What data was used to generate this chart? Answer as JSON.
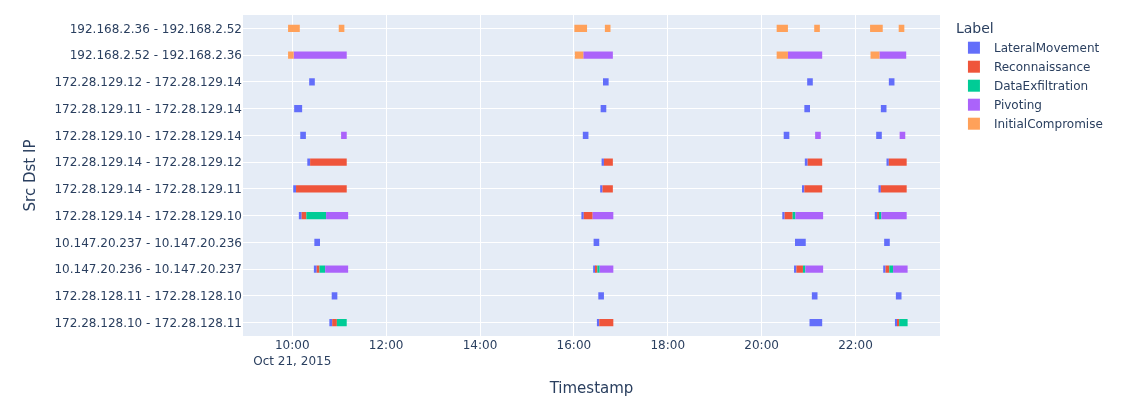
{
  "chart_data": {
    "type": "bar",
    "orientation": "horizontal",
    "xlabel": "Timestamp",
    "ylabel": "Src Dst IP",
    "legend_title": "Label",
    "legend": "top right",
    "grid": true,
    "categories": [
      "192.168.2.36 - 192.168.2.52",
      "192.168.2.52 - 192.168.2.36",
      "172.28.129.12 - 172.28.129.14",
      "172.28.129.11 - 172.28.129.14",
      "172.28.129.10 - 172.28.129.14",
      "172.28.129.14 - 172.28.129.12",
      "172.28.129.14 - 172.28.129.11",
      "172.28.129.14 - 172.28.129.10",
      "10.147.20.237 - 10.147.20.236",
      "10.147.20.236 - 10.147.20.237",
      "172.28.128.11 - 172.28.128.10",
      "172.28.128.10 - 172.28.128.11"
    ],
    "xlim": [
      8.95,
      23.8
    ],
    "xticks": [
      {
        "value": 10,
        "label": "10:00\nOct 21, 2015"
      },
      {
        "value": 12,
        "label": "12:00"
      },
      {
        "value": 14,
        "label": "14:00"
      },
      {
        "value": 16,
        "label": "16:00"
      },
      {
        "value": 18,
        "label": "18:00"
      },
      {
        "value": 20,
        "label": "20:00"
      },
      {
        "value": 22,
        "label": "22:00"
      }
    ],
    "series": [
      {
        "name": "LateralMovement",
        "color": "#636efa",
        "base": [
          null,
          null,
          10.36,
          10.04,
          10.17,
          10.32,
          10.02,
          10.14,
          10.47,
          10.46,
          10.84,
          10.79
        ],
        "values": [
          null,
          null,
          0.12,
          0.17,
          0.12,
          0.06,
          0.06,
          0.06,
          0.12,
          0.06,
          0.12,
          0.06
        ]
      },
      {
        "color": "#636efa",
        "base": [
          null,
          null,
          16.62,
          16.57,
          16.19,
          16.59,
          16.56,
          16.16,
          16.42,
          16.41,
          16.52,
          16.49
        ],
        "values": [
          null,
          null,
          0.12,
          0.12,
          0.12,
          0.05,
          0.05,
          0.05,
          0.12,
          0.05,
          0.12,
          0.05
        ]
      },
      {
        "color": "#636efa",
        "base": [
          null,
          null,
          20.97,
          20.91,
          20.47,
          20.92,
          20.86,
          20.44,
          20.71,
          20.69,
          21.07,
          21.02
        ],
        "values": [
          null,
          null,
          0.12,
          0.12,
          0.12,
          0.06,
          0.05,
          0.05,
          0.23,
          0.05,
          0.12,
          0.27
        ]
      },
      {
        "color": "#636efa",
        "base": [
          null,
          null,
          22.71,
          22.54,
          22.44,
          22.66,
          22.49,
          22.41,
          22.61,
          22.59,
          22.86,
          22.84
        ],
        "values": [
          null,
          null,
          0.12,
          0.12,
          0.12,
          0.05,
          0.05,
          0.05,
          0.12,
          0.05,
          0.12,
          0.05
        ]
      },
      {
        "name": "Reconnaissance",
        "color": "#ef553b",
        "base": [
          null,
          null,
          null,
          null,
          null,
          10.38,
          10.08,
          10.2,
          null,
          10.52,
          null,
          10.85
        ],
        "values": [
          null,
          null,
          null,
          null,
          null,
          0.78,
          1.08,
          0.1,
          null,
          0.06,
          null,
          0.1
        ]
      },
      {
        "color": "#ef553b",
        "base": [
          null,
          null,
          null,
          null,
          null,
          16.64,
          16.61,
          16.21,
          null,
          16.46,
          null,
          16.54
        ],
        "values": [
          null,
          null,
          null,
          null,
          null,
          0.19,
          0.22,
          0.19,
          null,
          0.04,
          null,
          0.3
        ]
      },
      {
        "color": "#ef553b",
        "base": [
          null,
          null,
          null,
          null,
          null,
          20.98,
          20.91,
          20.49,
          null,
          20.74,
          null,
          null
        ],
        "values": [
          null,
          null,
          null,
          null,
          null,
          0.31,
          0.38,
          0.17,
          null,
          0.14,
          null,
          null
        ]
      },
      {
        "color": "#ef553b",
        "base": [
          null,
          null,
          null,
          null,
          null,
          22.71,
          22.54,
          22.46,
          null,
          22.64,
          null,
          22.89
        ],
        "values": [
          null,
          null,
          null,
          null,
          null,
          0.38,
          0.55,
          0.05,
          null,
          0.08,
          null,
          0.04
        ]
      },
      {
        "name": "DataExfiltration",
        "color": "#00cc96",
        "base": [
          null,
          null,
          null,
          null,
          null,
          null,
          null,
          10.3,
          null,
          10.58,
          null,
          10.95
        ],
        "values": [
          null,
          null,
          null,
          null,
          null,
          null,
          null,
          0.42,
          null,
          0.12,
          null,
          0.21
        ]
      },
      {
        "color": "#00cc96",
        "base": [
          null,
          null,
          null,
          null,
          null,
          null,
          null,
          null,
          null,
          16.5,
          null,
          null
        ],
        "values": [
          null,
          null,
          null,
          null,
          null,
          null,
          null,
          null,
          null,
          0.05,
          null,
          null
        ]
      },
      {
        "color": "#00cc96",
        "base": [
          null,
          null,
          null,
          null,
          null,
          null,
          null,
          20.66,
          null,
          20.88,
          null,
          null
        ],
        "values": [
          null,
          null,
          null,
          null,
          null,
          null,
          null,
          0.06,
          null,
          0.05,
          null,
          null
        ]
      },
      {
        "color": "#00cc96",
        "base": [
          null,
          null,
          null,
          null,
          null,
          null,
          null,
          22.51,
          null,
          22.72,
          null,
          22.93
        ],
        "values": [
          null,
          null,
          null,
          null,
          null,
          null,
          null,
          0.04,
          null,
          0.08,
          null,
          0.18
        ]
      },
      {
        "name": "Pivoting",
        "color": "#ab63fa",
        "base": [
          null,
          10.03,
          null,
          null,
          11.04,
          null,
          null,
          10.72,
          null,
          10.7,
          null,
          null
        ],
        "values": [
          null,
          1.13,
          null,
          null,
          0.12,
          null,
          null,
          0.47,
          null,
          0.49,
          null,
          null
        ]
      },
      {
        "color": "#ab63fa",
        "base": [
          null,
          16.2,
          null,
          null,
          null,
          null,
          null,
          16.4,
          null,
          16.55,
          null,
          null
        ],
        "values": [
          null,
          0.63,
          null,
          null,
          null,
          null,
          null,
          0.44,
          null,
          0.29,
          null,
          null
        ]
      },
      {
        "color": "#ab63fa",
        "base": [
          null,
          20.56,
          null,
          null,
          21.14,
          null,
          null,
          20.72,
          null,
          20.93,
          null,
          null
        ],
        "values": [
          null,
          0.73,
          null,
          null,
          0.12,
          null,
          null,
          0.59,
          null,
          0.38,
          null,
          null
        ]
      },
      {
        "color": "#ab63fa",
        "base": [
          null,
          22.51,
          null,
          null,
          22.94,
          null,
          null,
          22.55,
          null,
          22.8,
          null,
          null
        ],
        "values": [
          null,
          0.57,
          null,
          null,
          0.12,
          null,
          null,
          0.54,
          null,
          0.31,
          null,
          null
        ]
      },
      {
        "name": "InitialCompromise",
        "color": "#ffa15a",
        "base": [
          9.91,
          9.91,
          null,
          null,
          null,
          null,
          null,
          null,
          null,
          null,
          null,
          null
        ],
        "values": [
          0.25,
          0.12,
          null,
          null,
          null,
          null,
          null,
          null,
          null,
          null,
          null,
          null
        ]
      },
      {
        "color": "#ffa15a",
        "base": [
          10.99,
          null,
          null,
          null,
          null,
          null,
          null,
          null,
          null,
          null,
          null,
          null
        ],
        "values": [
          0.12,
          null,
          null,
          null,
          null,
          null,
          null,
          null,
          null,
          null,
          null,
          null
        ]
      },
      {
        "color": "#ffa15a",
        "base": [
          16.01,
          16.02,
          null,
          null,
          null,
          null,
          null,
          null,
          null,
          null,
          null,
          null
        ],
        "values": [
          0.27,
          0.18,
          null,
          null,
          null,
          null,
          null,
          null,
          null,
          null,
          null,
          null
        ]
      },
      {
        "color": "#ffa15a",
        "base": [
          16.66,
          null,
          null,
          null,
          null,
          null,
          null,
          null,
          null,
          null,
          null,
          null
        ],
        "values": [
          0.12,
          null,
          null,
          null,
          null,
          null,
          null,
          null,
          null,
          null,
          null,
          null
        ]
      },
      {
        "color": "#ffa15a",
        "base": [
          20.32,
          20.32,
          null,
          null,
          null,
          null,
          null,
          null,
          null,
          null,
          null,
          null
        ],
        "values": [
          0.24,
          0.24,
          null,
          null,
          null,
          null,
          null,
          null,
          null,
          null,
          null,
          null
        ]
      },
      {
        "color": "#ffa15a",
        "base": [
          21.12,
          null,
          null,
          null,
          null,
          null,
          null,
          null,
          null,
          null,
          null,
          null
        ],
        "values": [
          0.12,
          null,
          null,
          null,
          null,
          null,
          null,
          null,
          null,
          null,
          null,
          null
        ]
      },
      {
        "color": "#ffa15a",
        "base": [
          22.31,
          22.32,
          null,
          null,
          null,
          null,
          null,
          null,
          null,
          null,
          null,
          null
        ],
        "values": [
          0.27,
          0.19,
          null,
          null,
          null,
          null,
          null,
          null,
          null,
          null,
          null,
          null
        ]
      },
      {
        "color": "#ffa15a",
        "base": [
          22.92,
          null,
          null,
          null,
          null,
          null,
          null,
          null,
          null,
          null,
          null,
          null
        ],
        "values": [
          0.12,
          null,
          null,
          null,
          null,
          null,
          null,
          null,
          null,
          null,
          null,
          null
        ]
      }
    ]
  }
}
